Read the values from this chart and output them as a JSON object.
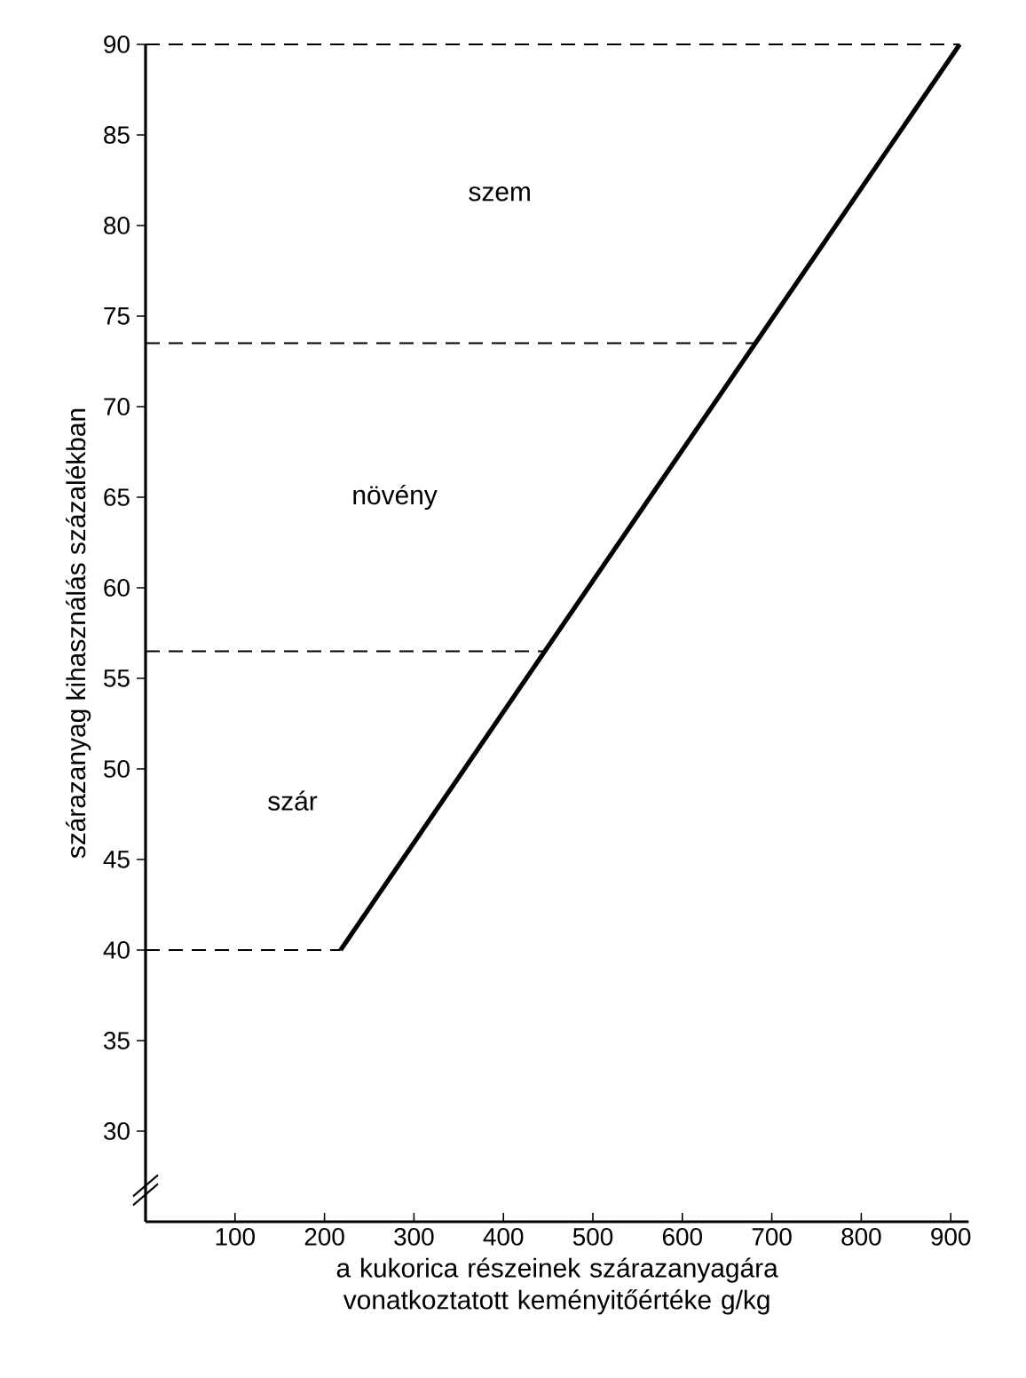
{
  "chart_data": {
    "type": "line",
    "xlabel": "a kukorica részeinek szárazanyagára vonatkoztatott keményitőértéke g/kg",
    "ylabel": "szárazanyag kihasználás százalékban",
    "series": [
      {
        "color": "#000000",
        "x": [
          218,
          910
        ],
        "values": [
          40,
          90
        ]
      }
    ],
    "xlim": [
      0,
      920
    ],
    "ylim": [
      25,
      90
    ],
    "xticks": [
      100,
      200,
      300,
      400,
      500,
      600,
      700,
      800,
      900
    ],
    "yticks": [
      30,
      35,
      40,
      45,
      50,
      55,
      60,
      65,
      70,
      75,
      80,
      85,
      90
    ],
    "ref_lines": [
      {
        "axis": "y",
        "value": 90,
        "line_style": "dashed"
      },
      {
        "axis": "y",
        "value": 73.5,
        "line_style": "dashed"
      },
      {
        "axis": "y",
        "value": 56.5,
        "line_style": "dashed"
      },
      {
        "axis": "y",
        "value": 40,
        "line_style": "dashed"
      }
    ],
    "annotations": [
      "szem",
      "növény",
      "szár"
    ],
    "marker": "none",
    "line_style": "solid"
  }
}
